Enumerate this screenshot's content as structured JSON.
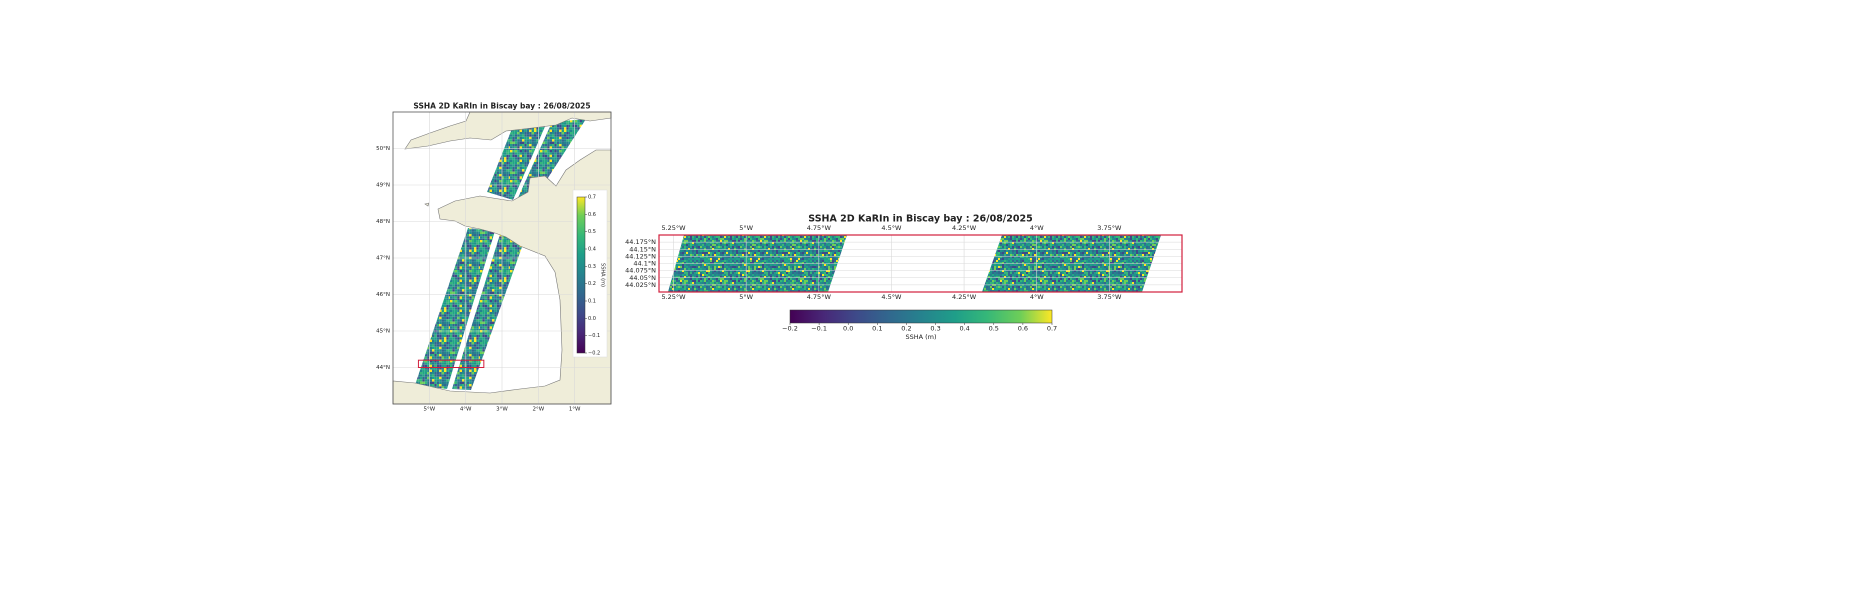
{
  "maps": [
    {
      "title": "SSHA 2D KaRIn in Biscay bay : 26/08/2025",
      "xlim": [
        -6,
        0
      ],
      "ylim": [
        43,
        51
      ],
      "xticks": [
        {
          "value": -5,
          "label": "5°W"
        },
        {
          "value": -4,
          "label": "4°W"
        },
        {
          "value": -3,
          "label": "3°W"
        },
        {
          "value": -2,
          "label": "2°W"
        },
        {
          "value": -1,
          "label": "1°W"
        }
      ],
      "yticks": [
        {
          "value": 44,
          "label": "44°N"
        },
        {
          "value": 45,
          "label": "45°N"
        },
        {
          "value": 46,
          "label": "46°N"
        },
        {
          "value": 47,
          "label": "47°N"
        },
        {
          "value": 48,
          "label": "48°N"
        },
        {
          "value": 49,
          "label": "49°N"
        },
        {
          "value": 50,
          "label": "50°N"
        }
      ],
      "colorbar": {
        "label": "SSHA (m)",
        "orientation": "vertical",
        "clim": [
          -0.2,
          0.7
        ],
        "ticks": [
          {
            "value": -0.2,
            "label": "−0.2"
          },
          {
            "value": -0.1,
            "label": "−0.1"
          },
          {
            "value": 0,
            "label": "0.0"
          },
          0.1,
          0.2,
          0.3,
          0.4,
          0.5,
          0.6,
          0.7
        ]
      }
    },
    {
      "title": "SSHA 2D KaRIn in Biscay bay : 26/08/2025",
      "xlim": [
        -5.3,
        -3.5
      ],
      "ylim": [
        44.0,
        44.2
      ],
      "xticks": [
        {
          "value": -5.25,
          "label": "5.25°W"
        },
        {
          "value": -5,
          "label": "5°W"
        },
        {
          "value": -4.75,
          "label": "4.75°W"
        },
        {
          "value": -4.5,
          "label": "4.5°W"
        },
        {
          "value": -4.25,
          "label": "4.25°W"
        },
        {
          "value": -4,
          "label": "4°W"
        },
        {
          "value": -3.75,
          "label": "3.75°W"
        }
      ],
      "yticks": [
        {
          "value": 44.025,
          "label": "44.025°N"
        },
        {
          "value": 44.05,
          "label": "44.05°N"
        },
        {
          "value": 44.075,
          "label": "44.075°N"
        },
        {
          "value": 44.1,
          "label": "44.1°N"
        },
        {
          "value": 44.125,
          "label": "44.125°N"
        },
        {
          "value": 44.15,
          "label": "44.15°N"
        },
        {
          "value": 44.175,
          "label": "44.175°N"
        }
      ],
      "colorbar": {
        "label": "SSHA (m)",
        "orientation": "horizontal",
        "clim": [
          -0.2,
          0.7
        ],
        "ticks": [
          {
            "value": -0.2,
            "label": "−0.2"
          },
          {
            "value": -0.1,
            "label": "−0.1"
          },
          {
            "value": 0,
            "label": "0.0"
          },
          0.1,
          0.2,
          0.3,
          0.4,
          0.5,
          0.6,
          0.7
        ]
      }
    }
  ]
}
